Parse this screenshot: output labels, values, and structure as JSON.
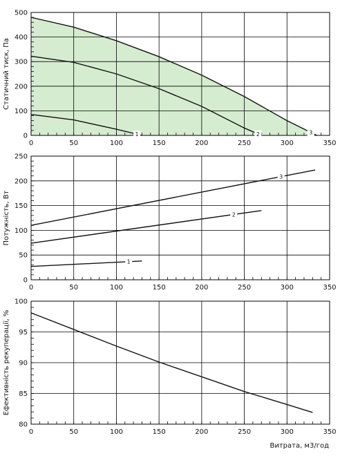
{
  "chart_data": [
    {
      "type": "area",
      "ylabel": "Статичний тиск, Па",
      "xlabel": "",
      "xlim": [
        0,
        350
      ],
      "ylim": [
        0,
        500
      ],
      "xticks": [
        "0",
        "50",
        "100",
        "150",
        "200",
        "250",
        "300",
        "350"
      ],
      "yticks": [
        "0",
        "100",
        "200",
        "300",
        "400",
        "500"
      ],
      "grid": true,
      "shaded_region": {
        "color": "#d6ecd0",
        "between": "series 3 and x-axis"
      },
      "series": [
        {
          "name": "1",
          "x": [
            0,
            50,
            100,
            130
          ],
          "y": [
            85,
            63,
            25,
            0
          ]
        },
        {
          "name": "2",
          "x": [
            0,
            50,
            100,
            150,
            200,
            250,
            270
          ],
          "y": [
            322,
            297,
            250,
            190,
            118,
            30,
            0
          ]
        },
        {
          "name": "3",
          "x": [
            0,
            50,
            100,
            150,
            200,
            250,
            300,
            335
          ],
          "y": [
            480,
            440,
            385,
            320,
            245,
            158,
            60,
            0
          ]
        }
      ]
    },
    {
      "type": "line",
      "ylabel": "Потужність, Вт",
      "xlabel": "",
      "xlim": [
        0,
        350
      ],
      "ylim": [
        0,
        250
      ],
      "xticks": [
        "0",
        "50",
        "100",
        "150",
        "200",
        "250",
        "300",
        "350"
      ],
      "yticks": [
        "0",
        "50",
        "100",
        "150",
        "200",
        "250"
      ],
      "grid": true,
      "series": [
        {
          "name": "1",
          "x": [
            0,
            130
          ],
          "y": [
            27,
            38
          ]
        },
        {
          "name": "2",
          "x": [
            0,
            270
          ],
          "y": [
            74,
            140
          ]
        },
        {
          "name": "3",
          "x": [
            0,
            333
          ],
          "y": [
            110,
            222
          ]
        }
      ]
    },
    {
      "type": "line",
      "ylabel": "Ефективність рекуперації, %",
      "xlabel": "Витрата, м3/год",
      "xlim": [
        0,
        350
      ],
      "ylim": [
        80,
        100
      ],
      "xticks": [
        "0",
        "50",
        "100",
        "150",
        "200",
        "250",
        "300",
        "350"
      ],
      "yticks": [
        "80",
        "85",
        "90",
        "95",
        "100"
      ],
      "grid": true,
      "series": [
        {
          "x": [
            0,
            50,
            100,
            150,
            200,
            250,
            300,
            330
          ],
          "y": [
            98.1,
            95.4,
            92.7,
            90.1,
            87.7,
            85.3,
            83.2,
            81.9
          ]
        }
      ]
    }
  ]
}
